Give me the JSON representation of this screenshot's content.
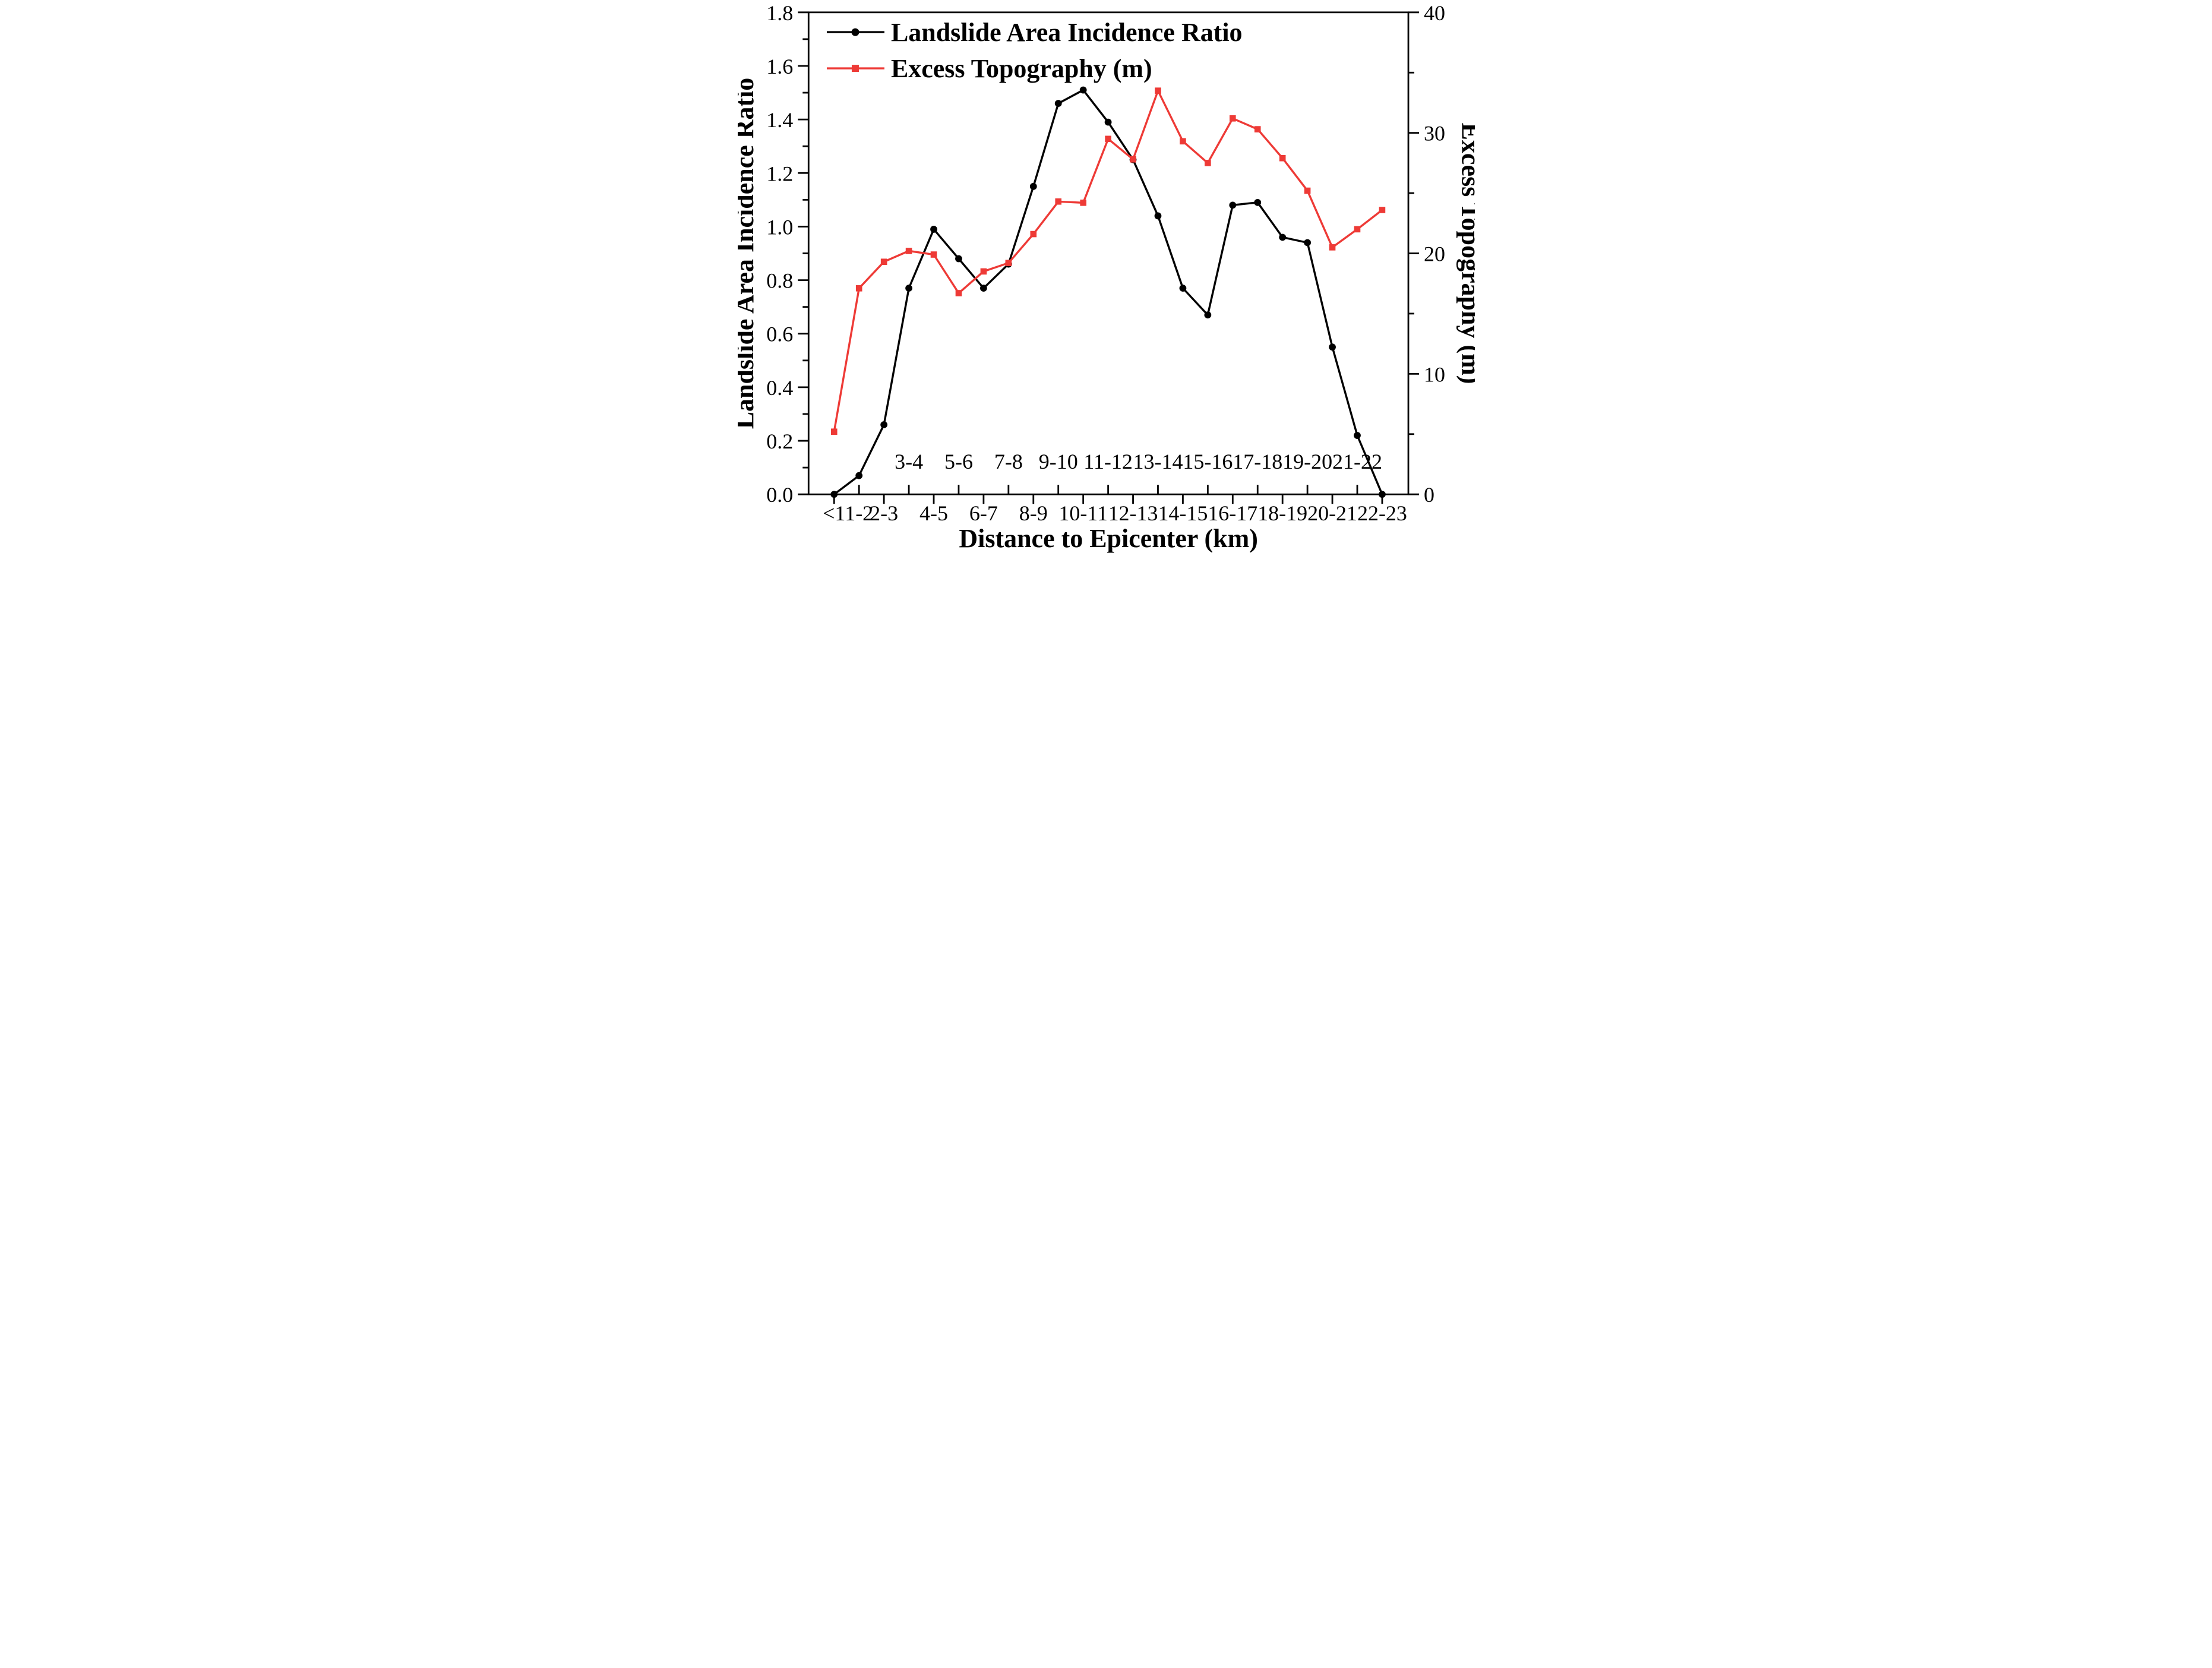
{
  "chart_data": {
    "type": "line",
    "title": "",
    "xlabel": "Distance to Epicenter (km)",
    "ylabel_left": "Landslide Area Incidence Ratio",
    "ylabel_right": "Excess Topography (m)",
    "categories": [
      "<1",
      "1-2",
      "2-3",
      "3-4",
      "4-5",
      "5-6",
      "6-7",
      "7-8",
      "8-9",
      "9-10",
      "10-11",
      "11-12",
      "12-13",
      "13-14",
      "14-15",
      "15-16",
      "16-17",
      "17-18",
      "18-19",
      "19-20",
      "20-21",
      "21-22",
      "22-23"
    ],
    "left_axis": {
      "min": 0.0,
      "max": 1.8,
      "major_step": 0.2,
      "minor_step": 0.1,
      "tick_labels": [
        "0.0",
        "0.2",
        "0.4",
        "0.6",
        "0.8",
        "1.0",
        "1.2",
        "1.4",
        "1.6",
        "1.8"
      ]
    },
    "right_axis": {
      "min": 0,
      "max": 40,
      "major_step": 10,
      "minor_step": 5,
      "tick_labels": [
        "0",
        "10",
        "20",
        "30",
        "40"
      ]
    },
    "series": [
      {
        "name": "Landslide Area Incidence Ratio",
        "axis": "left",
        "marker": "circle",
        "color": "#000000",
        "values": [
          0.0,
          0.07,
          0.26,
          0.77,
          0.99,
          0.88,
          0.77,
          0.86,
          1.15,
          1.46,
          1.51,
          1.39,
          1.25,
          1.04,
          0.77,
          0.67,
          1.08,
          1.09,
          0.96,
          0.94,
          0.55,
          0.22,
          0.0
        ]
      },
      {
        "name": "Excess Topography (m)",
        "axis": "right",
        "marker": "square",
        "color": "#ee3a36",
        "values": [
          5.2,
          17.1,
          19.3,
          20.2,
          19.9,
          16.7,
          18.5,
          19.2,
          21.6,
          24.3,
          24.2,
          29.5,
          27.8,
          33.5,
          29.3,
          27.5,
          31.2,
          30.3,
          27.9,
          25.2,
          20.5,
          22.0,
          23.6
        ]
      }
    ],
    "legend": {
      "position": "top-left",
      "entries": [
        "Landslide Area Incidence Ratio",
        "Excess Topography (m)"
      ]
    },
    "layout_hints": {
      "grid": "off",
      "x_label_rows": "bottom row: <1,1-2,2-3 then even bins; inner row above axis: odd bins 3-4 through 21-22",
      "ticks": "outward on y axes; x ticks alternate below(even)/inside(odd)"
    }
  },
  "colors": {
    "series_black": "#000000",
    "series_red": "#ee3a36",
    "background": "#ffffff"
  }
}
